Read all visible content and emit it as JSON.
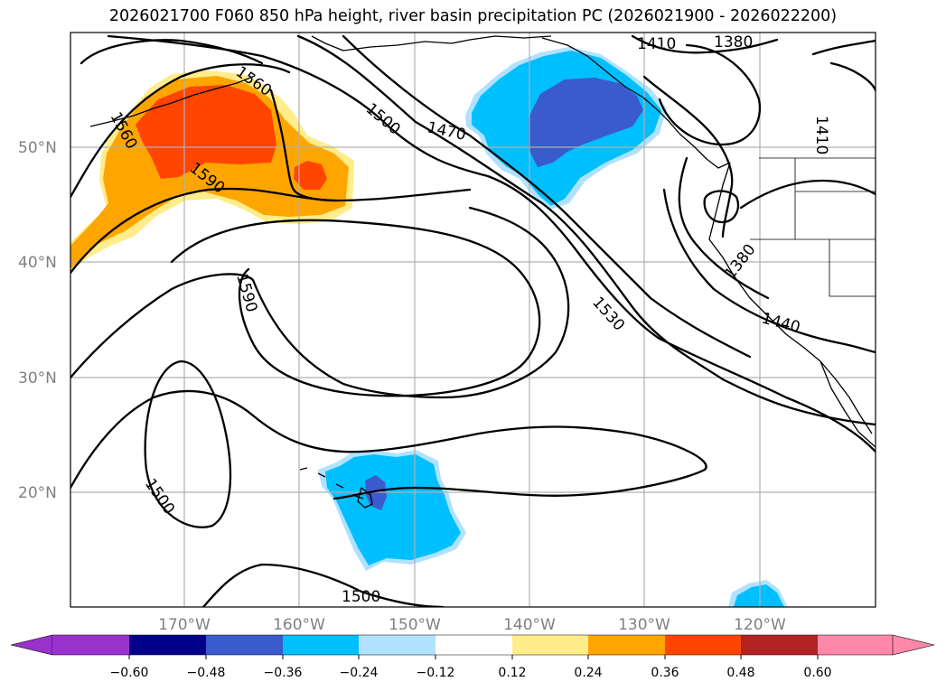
{
  "title": "2026021700 F060 850 hPa height, river basin precipitation PC (2026021900 - 2026022200)",
  "lat_labels": [
    "50°N",
    "40°N",
    "30°N",
    "20°N"
  ],
  "lon_labels": [
    "170°W",
    "160°W",
    "150°W",
    "140°W",
    "130°W",
    "120°W"
  ],
  "contour_labels": [
    "1410",
    "1380",
    "1560",
    "1500",
    "1470",
    "1410",
    "1560",
    "1590",
    "1380",
    "1590",
    "1530",
    "1440",
    "1500",
    "1500"
  ],
  "colorbar": {
    "ticks": [
      "−0.60",
      "−0.48",
      "−0.36",
      "−0.24",
      "−0.12",
      "0.12",
      "0.24",
      "0.36",
      "0.48",
      "0.60"
    ],
    "under_color": "#9932cc",
    "over_color": "#ff88aa",
    "colors": [
      "#00008b",
      "#3a5bcd",
      "#00bfff",
      "#b0e2ff",
      "#ffffff",
      "#ffec8b",
      "#ffa500",
      "#ff4500",
      "#b22222"
    ]
  },
  "chart_data": {
    "type": "map",
    "field_contours": "850 hPa height",
    "field_fill": "river basin precipitation PC",
    "contour_levels": [
      1380,
      1410,
      1440,
      1470,
      1500,
      1530,
      1560,
      1590
    ],
    "fill_levels": [
      -0.6,
      -0.48,
      -0.36,
      -0.24,
      -0.12,
      0.12,
      0.24,
      0.36,
      0.48,
      0.6
    ]
  }
}
